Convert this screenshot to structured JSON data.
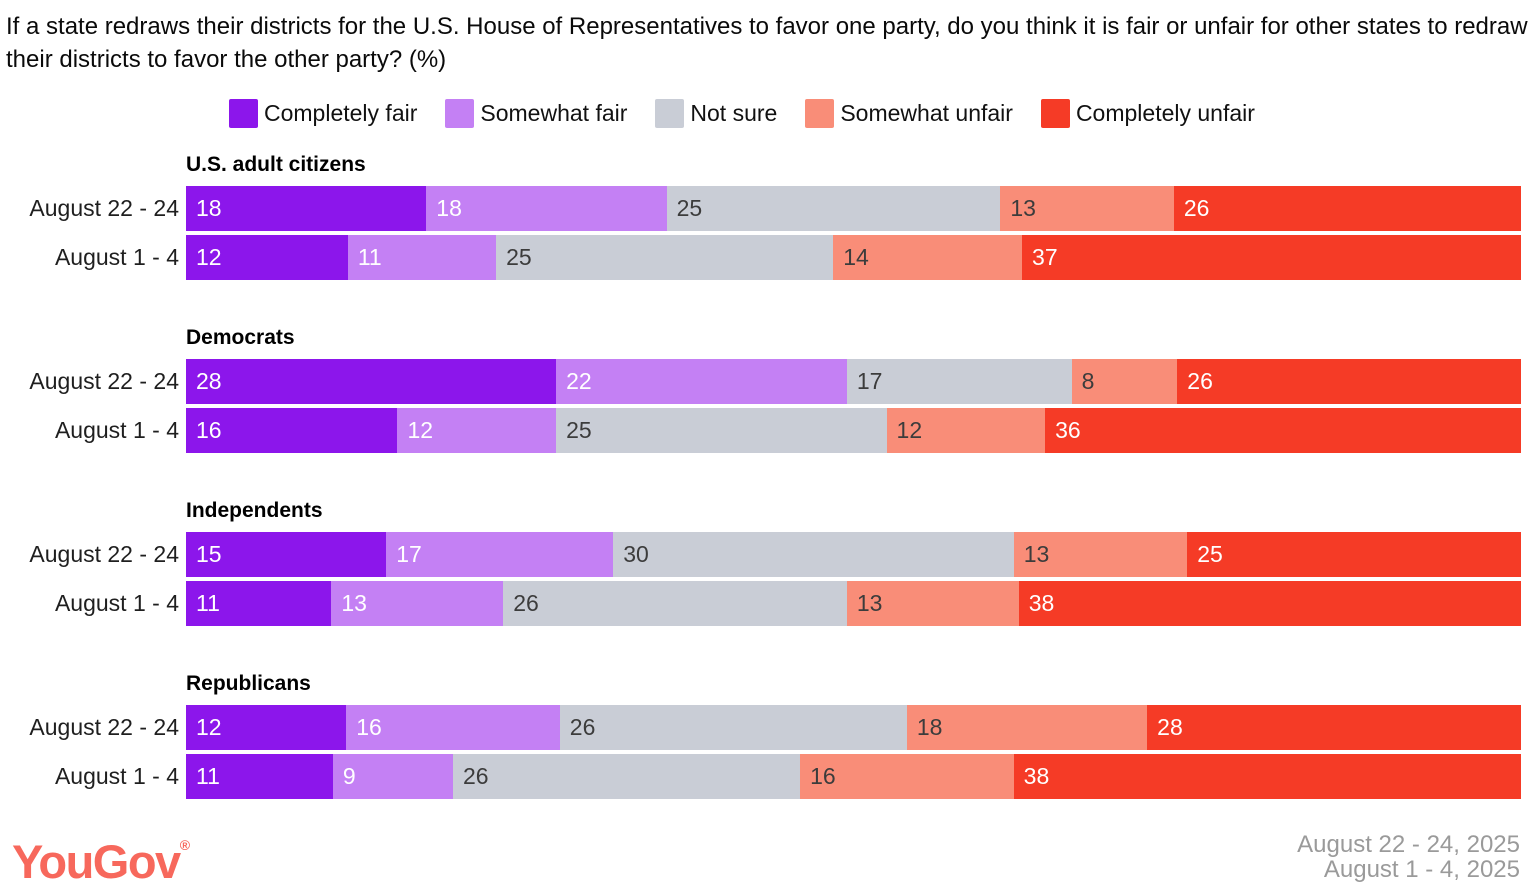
{
  "title": "If a state redraws their districts for the U.S. House of Representatives to favor one party, do you think it is fair or unfair for other states to redraw their districts to favor the other party? (%)",
  "legend": {
    "items": [
      {
        "label": "Completely fair",
        "color": "#8C16EB",
        "value_label_color": "#ffffff"
      },
      {
        "label": "Somewhat fair",
        "color": "#C480F4",
        "value_label_color": "#ffffff"
      },
      {
        "label": "Not sure",
        "color": "#C9CDD6",
        "value_label_color": "#3c3c3c"
      },
      {
        "label": "Somewhat unfair",
        "color": "#F98D78",
        "value_label_color": "#3c3c3c"
      },
      {
        "label": "Completely unfair",
        "color": "#F53B26",
        "value_label_color": "#ffffff"
      }
    ]
  },
  "chart_data": {
    "type": "bar",
    "stacked": true,
    "orientation": "horizontal",
    "unit": "percent",
    "categories": [
      "Completely fair",
      "Somewhat fair",
      "Not sure",
      "Somewhat unfair",
      "Completely unfair"
    ],
    "legend_position": "top",
    "grid": false,
    "groups": [
      {
        "name": "U.S. adult citizens",
        "rows": [
          {
            "label": "August 22 - 24",
            "values": [
              18,
              18,
              25,
              13,
              26
            ]
          },
          {
            "label": "August 1 - 4",
            "values": [
              12,
              11,
              25,
              14,
              37
            ]
          }
        ]
      },
      {
        "name": "Democrats",
        "rows": [
          {
            "label": "August 22 - 24",
            "values": [
              28,
              22,
              17,
              8,
              26
            ]
          },
          {
            "label": "August 1 - 4",
            "values": [
              16,
              12,
              25,
              12,
              36
            ]
          }
        ]
      },
      {
        "name": "Independents",
        "rows": [
          {
            "label": "August 22 - 24",
            "values": [
              15,
              17,
              30,
              13,
              25
            ]
          },
          {
            "label": "August 1 - 4",
            "values": [
              11,
              13,
              26,
              13,
              38
            ]
          }
        ]
      },
      {
        "name": "Republicans",
        "rows": [
          {
            "label": "August 22 - 24",
            "values": [
              12,
              16,
              26,
              18,
              28
            ]
          },
          {
            "label": "August 1 - 4",
            "values": [
              11,
              9,
              26,
              16,
              38
            ]
          }
        ]
      }
    ]
  },
  "footer": {
    "logo": "YouGov",
    "registered_mark": "®",
    "logo_color": "#F7685C",
    "dates": [
      "August 22 - 24, 2025",
      "August 1 - 4, 2025"
    ],
    "date_color": "#9A9A9A"
  }
}
